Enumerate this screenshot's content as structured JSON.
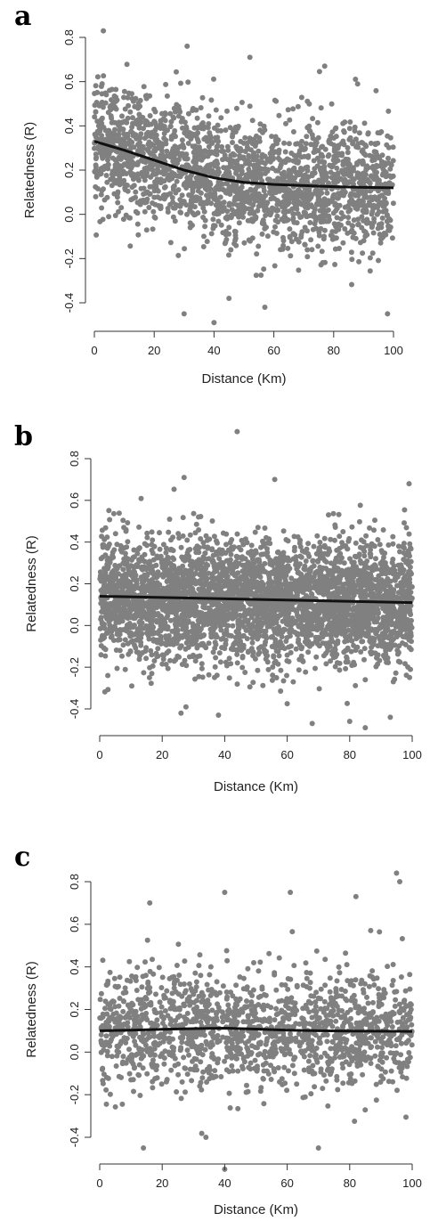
{
  "colors": {
    "points": "#808080",
    "trend": "#111111",
    "axis": "#333333"
  },
  "chart_data": [
    {
      "type": "scatter",
      "panel": "a",
      "xlabel": "Distance (Km)",
      "ylabel": "Relatedness (R)",
      "xlim": [
        0,
        100
      ],
      "ylim": [
        -0.4,
        0.8
      ],
      "xticks": [
        "0",
        "20",
        "40",
        "60",
        "80",
        "100"
      ],
      "yticks": [
        "-0.4",
        "-0.2",
        "0.0",
        "0.2",
        "0.4",
        "0.6",
        "0.8"
      ],
      "n_points": 2200,
      "scatter_center": 0.2,
      "scatter_spread": 0.2,
      "outliers": [
        [
          3,
          0.83
        ],
        [
          31,
          0.76
        ],
        [
          52,
          0.71
        ],
        [
          77,
          0.67
        ],
        [
          88,
          0.59
        ],
        [
          30,
          -0.45
        ],
        [
          40,
          -0.49
        ],
        [
          57,
          -0.42
        ],
        [
          98,
          -0.45
        ],
        [
          45,
          -0.38
        ]
      ],
      "trend": {
        "x": [
          0,
          10,
          20,
          30,
          40,
          50,
          60,
          70,
          80,
          90,
          100
        ],
        "y": [
          0.33,
          0.29,
          0.245,
          0.2,
          0.165,
          0.145,
          0.135,
          0.13,
          0.125,
          0.122,
          0.12
        ]
      },
      "grid": false
    },
    {
      "type": "scatter",
      "panel": "b",
      "xlabel": "Distance (Km)",
      "ylabel": "Relatedness (R)",
      "xlim": [
        0,
        100
      ],
      "ylim": [
        -0.4,
        0.8
      ],
      "xticks": [
        "0",
        "20",
        "40",
        "60",
        "80",
        "100"
      ],
      "yticks": [
        "-0.4",
        "-0.2",
        "0.0",
        "0.2",
        "0.4",
        "0.6",
        "0.8"
      ],
      "n_points": 3800,
      "scatter_center": 0.14,
      "scatter_spread": 0.2,
      "outliers": [
        [
          44,
          0.93
        ],
        [
          27,
          0.71
        ],
        [
          56,
          0.7
        ],
        [
          99,
          0.68
        ],
        [
          68,
          -0.47
        ],
        [
          80,
          -0.46
        ],
        [
          85,
          -0.49
        ],
        [
          38,
          -0.43
        ],
        [
          26,
          -0.42
        ],
        [
          93,
          -0.44
        ]
      ],
      "trend": {
        "x": [
          0,
          100
        ],
        "y": [
          0.14,
          0.11
        ]
      },
      "grid": false
    },
    {
      "type": "scatter",
      "panel": "c",
      "xlabel": "Distance (Km)",
      "ylabel": "Relatedness (R)",
      "xlim": [
        0,
        100
      ],
      "ylim": [
        -0.4,
        0.8
      ],
      "xticks": [
        "0",
        "20",
        "40",
        "60",
        "80",
        "100"
      ],
      "yticks": [
        "-0.4",
        "-0.2",
        "0.0",
        "0.2",
        "0.4",
        "0.6",
        "0.8"
      ],
      "n_points": 1500,
      "scatter_center": 0.1,
      "scatter_spread": 0.19,
      "outliers": [
        [
          95,
          0.84
        ],
        [
          96,
          0.8
        ],
        [
          40,
          0.75
        ],
        [
          61,
          0.75
        ],
        [
          82,
          0.73
        ],
        [
          16,
          0.7
        ],
        [
          40,
          -0.55
        ],
        [
          14,
          -0.45
        ],
        [
          70,
          -0.45
        ],
        [
          34,
          -0.4
        ]
      ],
      "trend": {
        "x": [
          0,
          10,
          20,
          30,
          40,
          50,
          60,
          70,
          80,
          90,
          100
        ],
        "y": [
          0.1,
          0.103,
          0.107,
          0.11,
          0.112,
          0.108,
          0.103,
          0.1,
          0.099,
          0.098,
          0.097
        ]
      },
      "grid": false
    }
  ]
}
